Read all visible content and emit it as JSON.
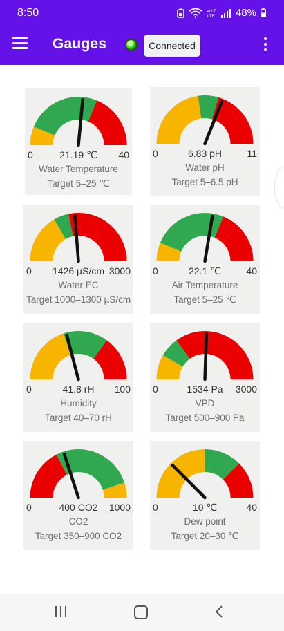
{
  "status_bar": {
    "time": "8:50",
    "battery_percent": "48%",
    "icons": [
      "battery-saver-icon",
      "wifi-icon",
      "volte-icon",
      "signal-icon",
      "battery-icon"
    ]
  },
  "app_bar": {
    "title": "Gauges",
    "connection_status": "Connected",
    "status_color": "#3ddc1a",
    "bar_color": "#6412e8"
  },
  "colors": {
    "yellow": "#f7b500",
    "green": "#2fa84f",
    "red": "#ea0000",
    "needle": "#111111",
    "card": "#f0f0ef"
  },
  "gauges": [
    {
      "name": "Water Temperature",
      "min": "0",
      "max": "40",
      "value_text": "21.19 ℃",
      "target": "Target 5–25 ℃",
      "value": 21.19,
      "range": [
        0,
        40
      ],
      "zones": [
        {
          "color": "yellow",
          "from": 0,
          "to": 5
        },
        {
          "color": "green",
          "from": 5,
          "to": 25
        },
        {
          "color": "red",
          "from": 25,
          "to": 40
        }
      ]
    },
    {
      "name": "Water pH",
      "min": "0",
      "max": "11",
      "value_text": "6.83 pH",
      "target": "Target 5–6.5 pH",
      "value": 6.83,
      "range": [
        0,
        11
      ],
      "zones": [
        {
          "color": "yellow",
          "from": 0,
          "to": 5
        },
        {
          "color": "green",
          "from": 5,
          "to": 6.5
        },
        {
          "color": "red",
          "from": 6.5,
          "to": 11
        }
      ]
    },
    {
      "name": "Water EC",
      "min": "0",
      "max": "3000",
      "value_text": "1426 µS/cm",
      "target": "Target 1000–1300 µS/cm",
      "value": 1426,
      "range": [
        0,
        3000
      ],
      "zones": [
        {
          "color": "yellow",
          "from": 0,
          "to": 1000
        },
        {
          "color": "green",
          "from": 1000,
          "to": 1300
        },
        {
          "color": "red",
          "from": 1300,
          "to": 3000
        }
      ]
    },
    {
      "name": "Air Temperature",
      "min": "0",
      "max": "40",
      "value_text": "22.1 ℃",
      "target": "Target 5–25 ℃",
      "value": 22.1,
      "range": [
        0,
        40
      ],
      "zones": [
        {
          "color": "yellow",
          "from": 0,
          "to": 5
        },
        {
          "color": "green",
          "from": 5,
          "to": 25
        },
        {
          "color": "red",
          "from": 25,
          "to": 40
        }
      ]
    },
    {
      "name": "Humidity",
      "min": "0",
      "max": "100",
      "value_text": "41.8 rH",
      "target": "Target 40–70 rH",
      "value": 41.8,
      "range": [
        0,
        100
      ],
      "zones": [
        {
          "color": "yellow",
          "from": 0,
          "to": 40
        },
        {
          "color": "green",
          "from": 40,
          "to": 70
        },
        {
          "color": "red",
          "from": 70,
          "to": 100
        }
      ]
    },
    {
      "name": "VPD",
      "min": "0",
      "max": "3000",
      "value_text": "1534 Pa",
      "target": "Target 500–900 Pa",
      "value": 1534,
      "range": [
        0,
        3000
      ],
      "zones": [
        {
          "color": "yellow",
          "from": 0,
          "to": 500
        },
        {
          "color": "green",
          "from": 500,
          "to": 900
        },
        {
          "color": "red",
          "from": 900,
          "to": 3000
        }
      ]
    },
    {
      "name": "CO2",
      "min": "0",
      "max": "1000",
      "value_text": "400 CO2",
      "target": "Target 350–900 CO2",
      "value": 400,
      "range": [
        0,
        1000
      ],
      "zones": [
        {
          "color": "red",
          "from": 0,
          "to": 350
        },
        {
          "color": "green",
          "from": 350,
          "to": 900
        },
        {
          "color": "yellow",
          "from": 900,
          "to": 1000
        }
      ]
    },
    {
      "name": "Dew point",
      "min": "0",
      "max": "40",
      "value_text": "10 ℃",
      "target": "Target 20–30 ℃",
      "value": 10,
      "range": [
        0,
        40
      ],
      "zones": [
        {
          "color": "yellow",
          "from": 0,
          "to": 20
        },
        {
          "color": "green",
          "from": 20,
          "to": 30
        },
        {
          "color": "red",
          "from": 30,
          "to": 40
        }
      ]
    }
  ]
}
